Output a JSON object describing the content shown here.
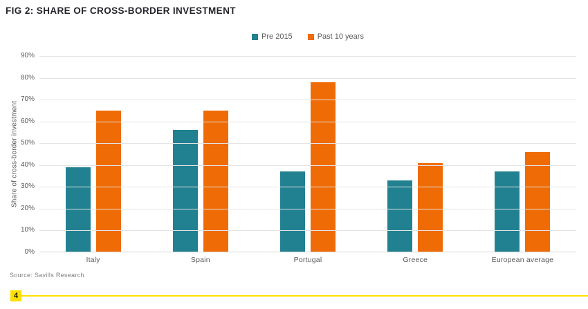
{
  "page": {
    "title": "FIG 2: SHARE OF CROSS-BORDER INVESTMENT",
    "source": "Source: Savills Research",
    "page_number": "4"
  },
  "colors": {
    "series_pre_2015": "#228191",
    "series_past_10_years": "#ef6b05",
    "gridline": "#e4e4e4",
    "axis_text": "#595959",
    "title_text": "#26242b",
    "source_text": "#7f7f7f",
    "accent_yellow": "#ffdf00"
  },
  "chart_data": {
    "type": "bar",
    "title": "FIG 2: SHARE OF CROSS-BORDER INVESTMENT",
    "categories": [
      "Italy",
      "Spain",
      "Portugal",
      "Greece",
      "European average"
    ],
    "series": [
      {
        "name": "Pre 2015",
        "color": "#228191",
        "values": [
          39,
          56,
          37,
          33,
          37
        ]
      },
      {
        "name": "Past 10 years",
        "color": "#ef6b05",
        "values": [
          65,
          65,
          78,
          41,
          46
        ]
      }
    ],
    "xlabel": "",
    "ylabel": "Share of cross-border investment",
    "ylim": [
      0,
      90
    ],
    "ytick_step": 10,
    "ytick_suffix": "%",
    "grid": true,
    "legend_position": "top-center"
  }
}
